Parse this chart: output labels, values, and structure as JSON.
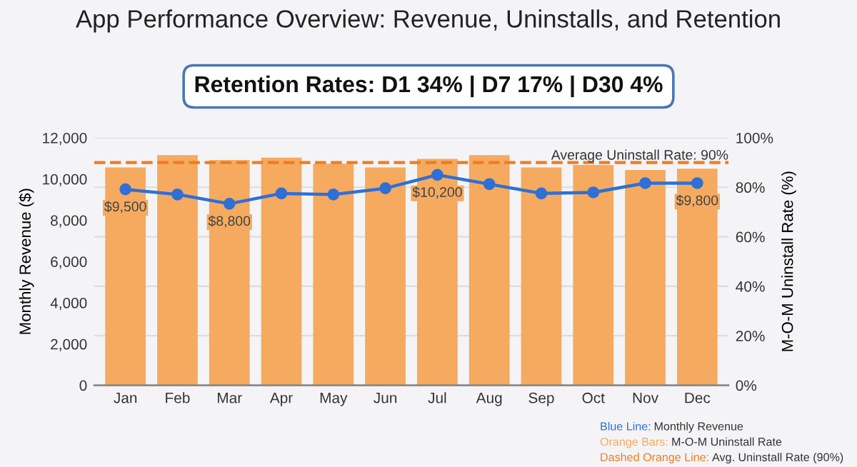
{
  "chart_data": {
    "type": "bar",
    "title": "App Performance Overview: Revenue, Uninstalls, and Retention",
    "subtitle": "Retention Rates: D1 34% | D7 17% | D30 4%",
    "ylabel": "Monthly Revenue ($)",
    "y2label": "M-O-M Uninstall Rate (%)",
    "categories": [
      "Jan",
      "Feb",
      "Mar",
      "Apr",
      "May",
      "Jun",
      "Jul",
      "Aug",
      "Sep",
      "Oct",
      "Nov",
      "Dec"
    ],
    "series": [
      {
        "axis": "y2",
        "color": "#f5aa5f",
        "values": [
          88,
          93,
          91,
          92,
          89.5,
          88,
          91.5,
          93,
          88,
          89,
          87,
          87.5
        ]
      },
      {
        "type": "line",
        "color": "#2f6fd6",
        "marker": "circle",
        "values": [
          9500,
          9250,
          8800,
          9300,
          9250,
          9550,
          10200,
          9750,
          9300,
          9350,
          9800,
          9800
        ],
        "value_labels": [
          "$9,500",
          null,
          "$8,800",
          null,
          null,
          null,
          "$10,200",
          null,
          null,
          null,
          null,
          "$9,800"
        ]
      }
    ],
    "ylim": [
      0,
      12000
    ],
    "yticks": [
      {
        "value": 0,
        "label": "0"
      },
      {
        "value": 2000,
        "label": "2,000"
      },
      {
        "value": 4000,
        "label": "4,000"
      },
      {
        "value": 6000,
        "label": "6,000"
      },
      {
        "value": 8000,
        "label": "8,000"
      },
      {
        "value": 10000,
        "label": "10,000"
      },
      {
        "value": 12000,
        "label": "12,000"
      }
    ],
    "y2lim": [
      0,
      100
    ],
    "y2ticks": [
      {
        "value": 0,
        "label": "0%"
      },
      {
        "value": 20,
        "label": "20%"
      },
      {
        "value": 40,
        "label": "40%"
      },
      {
        "value": 60,
        "label": "60%"
      },
      {
        "value": 80,
        "label": "80%"
      },
      {
        "value": 100,
        "label": "100%"
      }
    ],
    "ref_lines": [
      {
        "axis": "y2",
        "value": 90,
        "label": "Average Uninstall Rate: 90%",
        "color": "#f07c1e",
        "line_style": "dashed"
      }
    ],
    "annotations": [
      "Blue Line: Monthly Revenue",
      "Orange Bars: M-O-M Uninstall Rate",
      "Dashed Orange Line: Avg. Uninstall Rate (90%)"
    ],
    "grid": "y",
    "legend": false
  }
}
